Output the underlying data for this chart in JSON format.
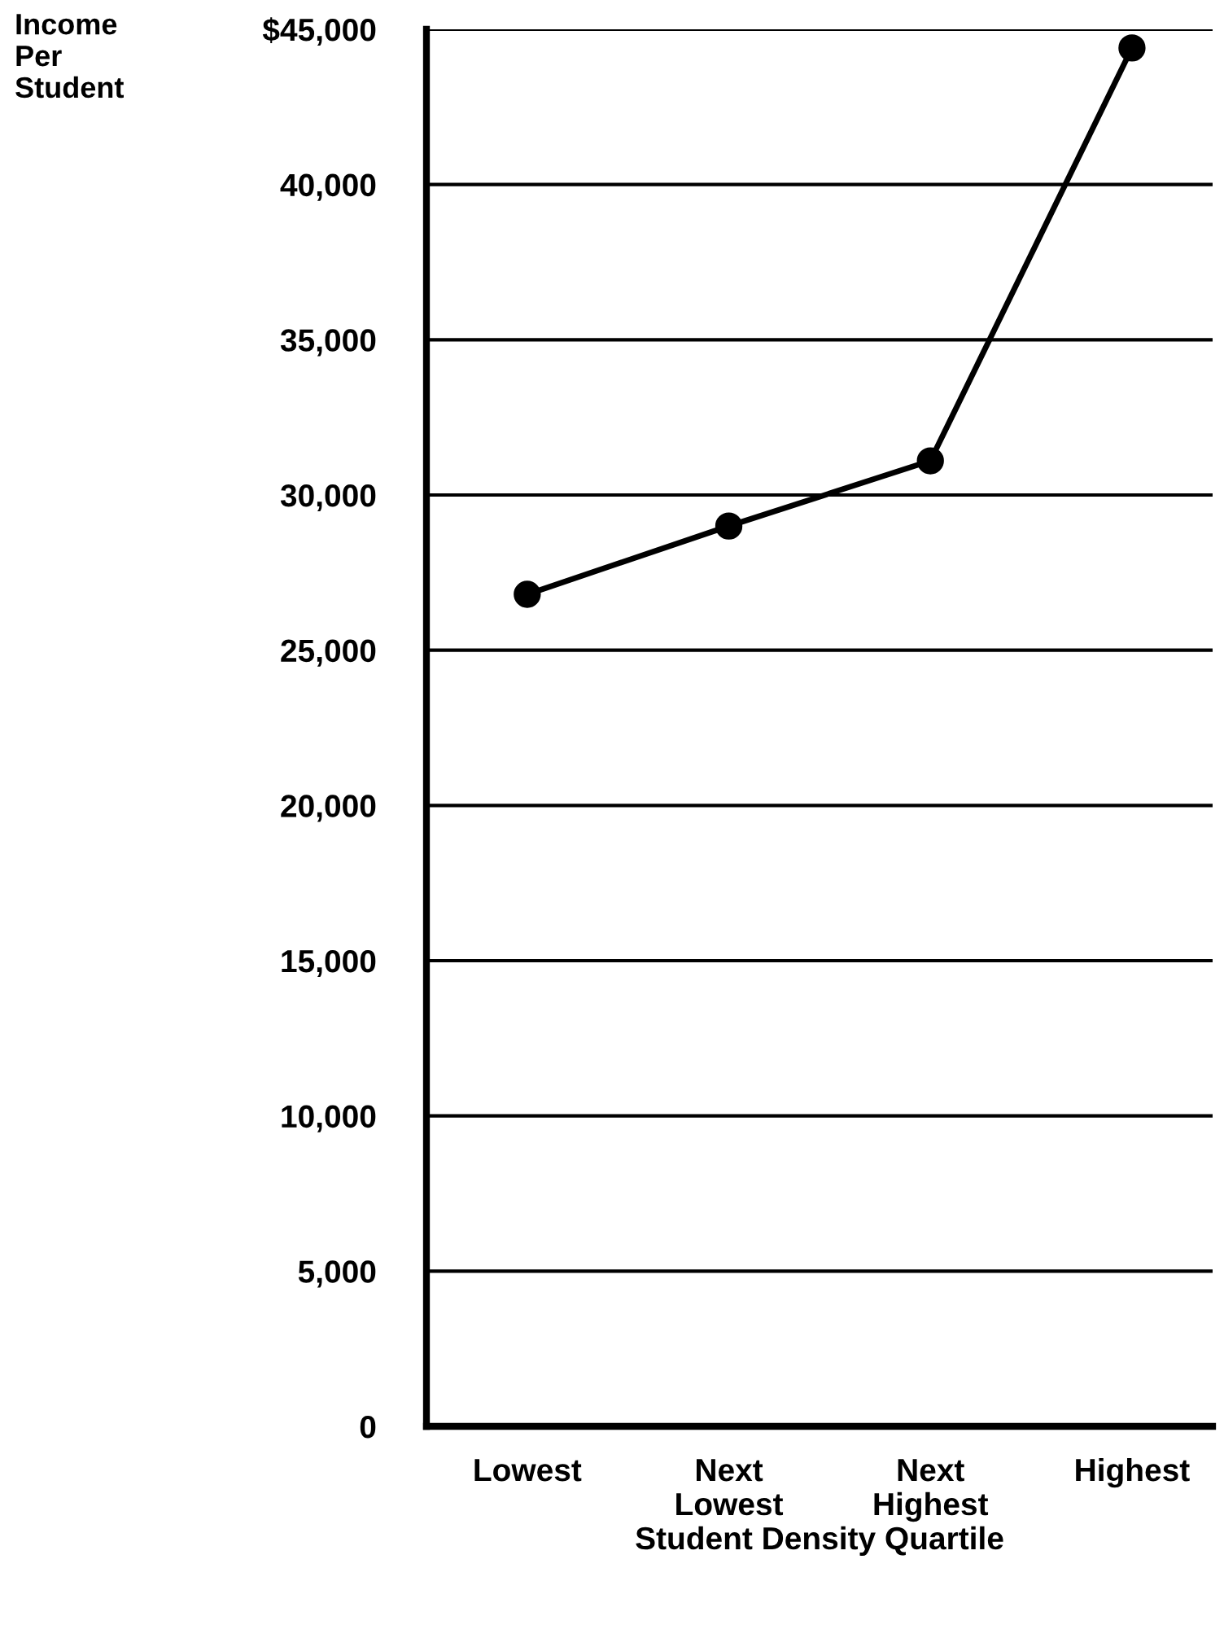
{
  "chart_data": {
    "type": "line",
    "ylabel": "Income\nPer\nStudent",
    "xlabel": "Student Density Quartile",
    "categories": [
      "Lowest",
      "Next\nLowest",
      "Next\nHighest",
      "Highest"
    ],
    "series": [
      {
        "color": "#000000",
        "values": [
          26800,
          29000,
          31100,
          44400
        ]
      }
    ],
    "ylim": [
      0,
      45000
    ],
    "yticks": [
      0,
      {
        "value": 5000,
        "label": "5,000"
      },
      {
        "value": 10000,
        "label": "10,000"
      },
      {
        "value": 15000,
        "label": "15,000"
      },
      {
        "value": 20000,
        "label": "20,000"
      },
      {
        "value": 25000,
        "label": "25,000"
      },
      {
        "value": 30000,
        "label": "30,000"
      },
      {
        "value": 35000,
        "label": "35,000"
      },
      {
        "value": 40000,
        "label": "40,000"
      },
      {
        "value": 45000,
        "label": "$45,000"
      }
    ],
    "grid": "y",
    "marker": "circle",
    "line_style": "solid"
  }
}
